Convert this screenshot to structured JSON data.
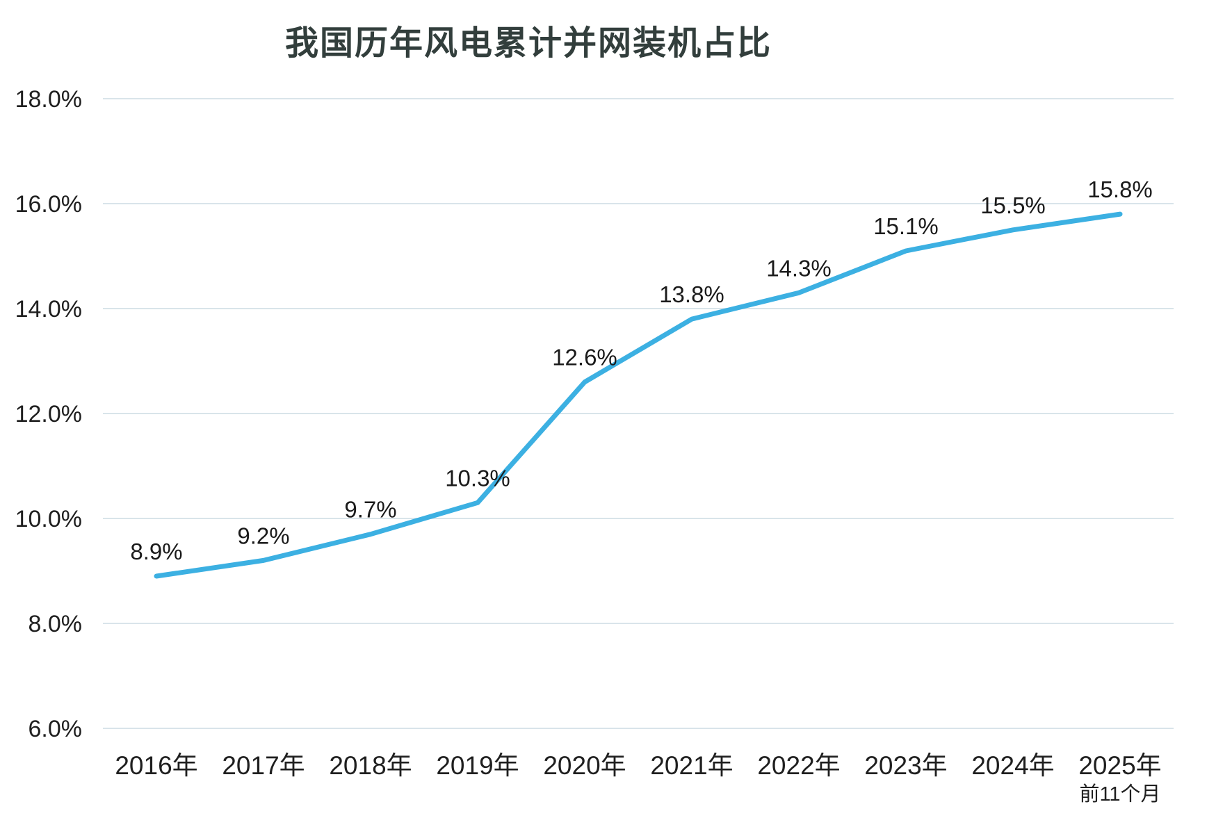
{
  "chart_data": {
    "type": "line",
    "title": "我国历年风电累计并网装机占比",
    "categories": [
      "2016年",
      "2017年",
      "2018年",
      "2019年",
      "2020年",
      "2021年",
      "2022年",
      "2023年",
      "2024年",
      "2025年"
    ],
    "last_category_note": "前11个月",
    "values": [
      8.9,
      9.2,
      9.7,
      10.3,
      12.6,
      13.8,
      14.3,
      15.1,
      15.5,
      15.8
    ],
    "data_labels": [
      "8.9%",
      "9.2%",
      "9.7%",
      "10.3%",
      "12.6%",
      "13.8%",
      "14.3%",
      "15.1%",
      "15.5%",
      "15.8%"
    ],
    "ytick_labels": [
      "18.0%",
      "16.0%",
      "14.0%",
      "12.0%",
      "10.0%",
      "8.0%",
      "6.0%"
    ],
    "ylim": [
      6.0,
      18.0
    ],
    "ytick_step": 2.0,
    "xlabel": "",
    "ylabel": "",
    "grid": true,
    "legend": false,
    "line_color": "#3cb0e2",
    "gridline_color": "#d9e4ea",
    "label_color": "#1a1a1a",
    "axis_label_color": "#1f1f1f",
    "title_color": "#323e3c"
  }
}
